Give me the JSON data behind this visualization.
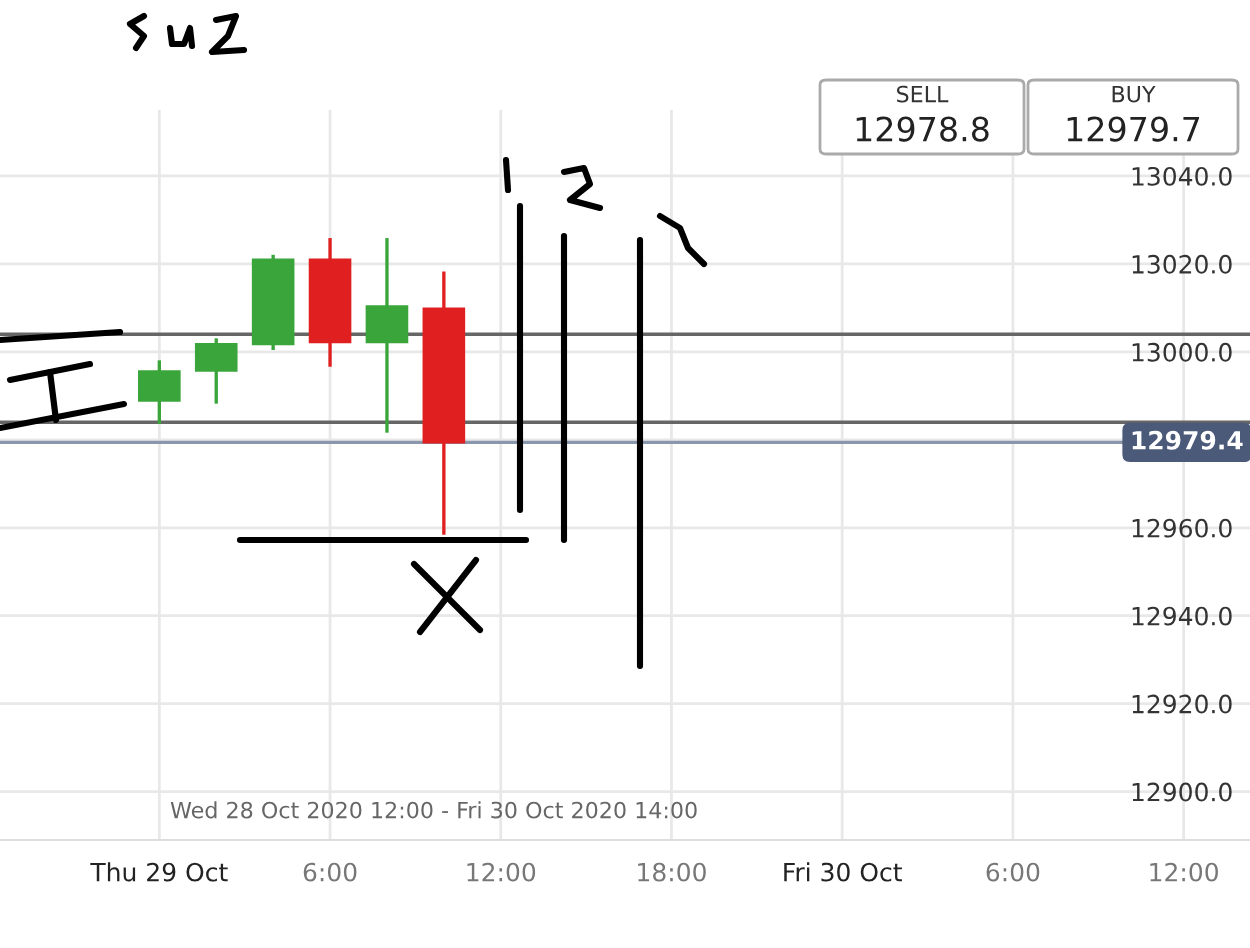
{
  "chart_data": {
    "type": "candlestick",
    "x": [
      "2020-10-29T00:00",
      "2020-10-29T02:00",
      "2020-10-29T04:00",
      "2020-10-29T06:00",
      "2020-10-29T08:00",
      "2020-10-29T10:00"
    ],
    "ohlc": [
      [
        12989,
        12997.7,
        12984,
        12995.5
      ],
      [
        12995.8,
        13002.7,
        12988.6,
        13001.7
      ],
      [
        13001.8,
        13021.7,
        13000.8,
        13020.9
      ],
      [
        13020.9,
        13025.5,
        12997,
        13002.3
      ],
      [
        13002.3,
        13025.5,
        12982,
        13010.3
      ],
      [
        13009.8,
        13017.9,
        12958.8,
        12979.5
      ]
    ],
    "colors": [
      "#3aa53a",
      "#3aa53a",
      "#3aa53a",
      "#e02020",
      "#3aa53a",
      "#e02020"
    ],
    "xlim": [
      "2020-10-28T18:24",
      "2020-10-30T14:20"
    ],
    "xticks": [
      {
        "value": "2020-10-29T00:00",
        "label": "Thu 29 Oct"
      },
      {
        "value": "2020-10-29T06:00",
        "label": "6:00"
      },
      {
        "value": "2020-10-29T12:00",
        "label": "12:00"
      },
      {
        "value": "2020-10-29T18:00",
        "label": "18:00"
      },
      {
        "value": "2020-10-30T00:00",
        "label": "Fri 30 Oct"
      },
      {
        "value": "2020-10-30T06:00",
        "label": "6:00"
      },
      {
        "value": "2020-10-30T12:00",
        "label": "12:00"
      }
    ],
    "ylim": [
      12889,
      13055
    ],
    "yticks": [
      {
        "value": 12900,
        "label": "12900.0"
      },
      {
        "value": 12920,
        "label": "12920.0"
      },
      {
        "value": 12940,
        "label": "12940.0"
      },
      {
        "value": 12960,
        "label": "12960.0"
      },
      {
        "value": 12980,
        "label": null
      },
      {
        "value": 13000,
        "label": "13000.0"
      },
      {
        "value": 13020,
        "label": "13020.0"
      },
      {
        "value": 13040,
        "label": "13040.0"
      }
    ],
    "grid": true,
    "ref_lines": [
      {
        "axis": "y",
        "value": 13004,
        "color": "#666666"
      },
      {
        "axis": "y",
        "value": 12984,
        "color": "#666666"
      },
      {
        "axis": "y",
        "value": 12979.4,
        "label": "12979.4",
        "color": "#8a96ab"
      }
    ],
    "annotations": [
      "Wed 28 Oct 2020 12:00 - Fri 30 Oct 2020 14:00",
      "SELL",
      "12978.8",
      "BUY",
      "12979.7"
    ]
  }
}
